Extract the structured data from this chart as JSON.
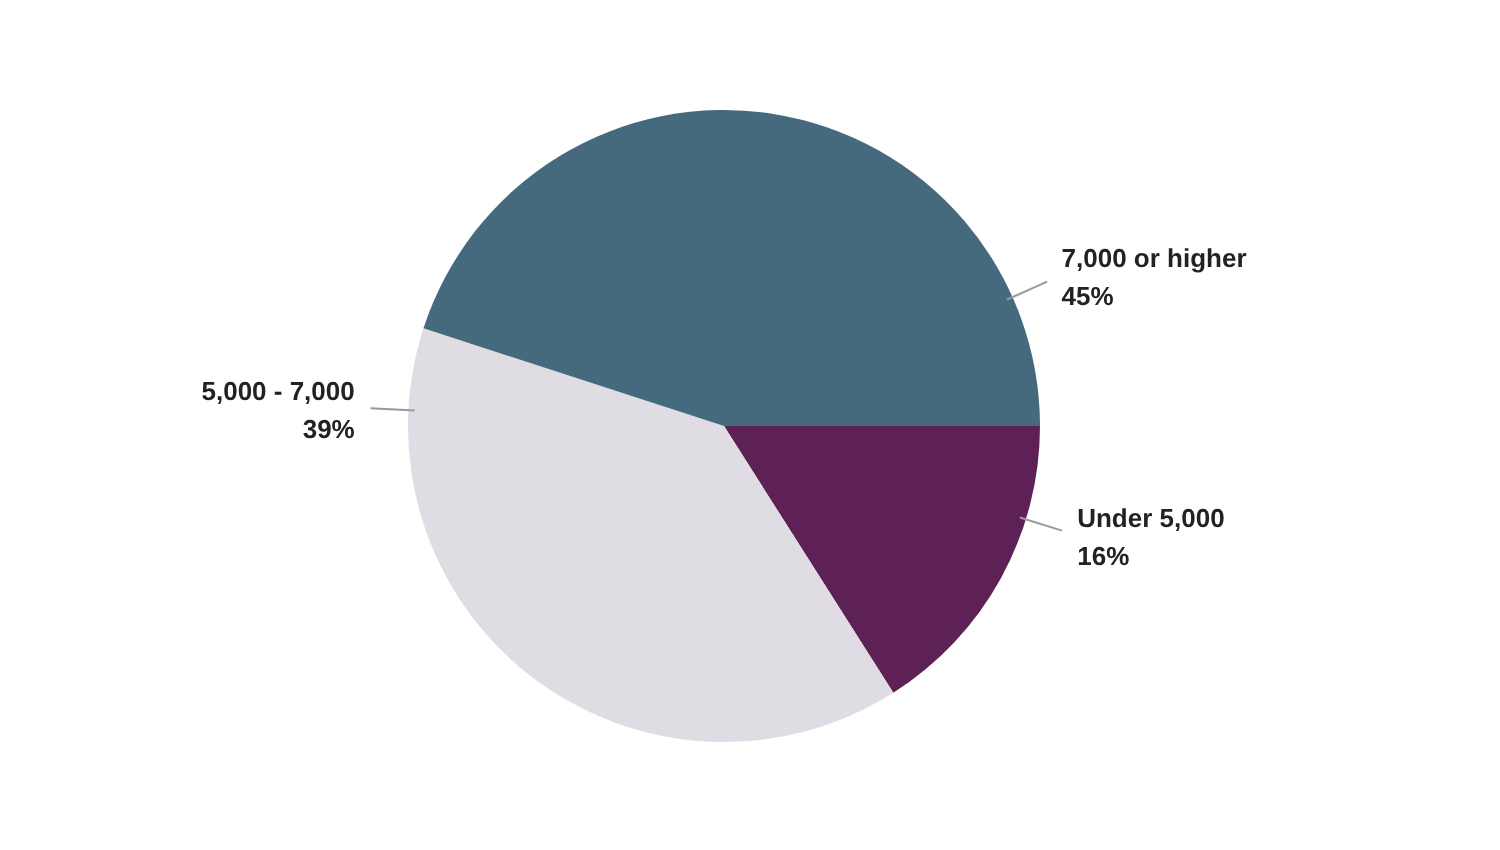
{
  "chart_data": {
    "type": "pie",
    "categories": [
      "Under 5,000",
      "5,000 - 7,000",
      "7,000 or higher"
    ],
    "values": [
      16,
      39,
      45
    ],
    "value_labels": [
      "16%",
      "39%",
      "45%"
    ],
    "colors": [
      "#5e2155",
      "#e0dce3",
      "#456a7d"
    ]
  }
}
